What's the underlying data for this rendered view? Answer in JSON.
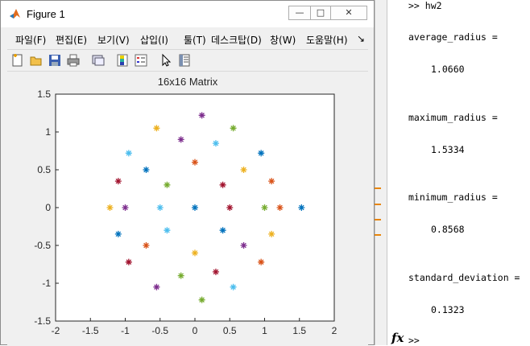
{
  "figure_window": {
    "title": "Figure 1",
    "buttons": {
      "minimize": "—",
      "maximize": "□",
      "close": "✕"
    },
    "menu": [
      "파일(F)",
      "편집(E)",
      "보기(V)",
      "삽입(I)",
      "툴(T)",
      "데스크탑(D)",
      "창(W)",
      "도움말(H)"
    ],
    "menu_more": "↘",
    "toolbar_icons": [
      "new-figure-icon",
      "open-file-icon",
      "save-icon",
      "print-icon",
      "link-plot-icon",
      "insert-colorbar-icon",
      "insert-legend-icon",
      "pointer-icon",
      "property-inspector-icon"
    ]
  },
  "chart_data": {
    "type": "scatter",
    "title": "16x16 Matrix",
    "xlabel": "",
    "ylabel": "",
    "xlim": [
      -2,
      2
    ],
    "ylim": [
      -1.5,
      1.5
    ],
    "xticks": [
      "-2",
      "-1.5",
      "-1",
      "-0.5",
      "0",
      "0.5",
      "1",
      "1.5",
      "2"
    ],
    "yticks": [
      "1.5",
      "1",
      "0.5",
      "0",
      "-0.5",
      "-1",
      "-1.5"
    ],
    "marker": "*",
    "grid": false,
    "colors": [
      "#0072bd",
      "#d95319",
      "#edb120",
      "#7e2f8e",
      "#77ac30",
      "#4dbeee",
      "#a2142f"
    ],
    "points": [
      [
        1.53,
        0.0
      ],
      [
        1.22,
        0.0
      ],
      [
        -1.22,
        0.0
      ],
      [
        0.1,
        1.22
      ],
      [
        0.1,
        -1.22
      ],
      [
        -0.95,
        0.72
      ],
      [
        -0.95,
        -0.72
      ],
      [
        0.95,
        0.72
      ],
      [
        0.95,
        -0.72
      ],
      [
        -0.55,
        1.05
      ],
      [
        -0.55,
        -1.05
      ],
      [
        0.55,
        1.05
      ],
      [
        0.55,
        -1.05
      ],
      [
        -1.1,
        0.35
      ],
      [
        -1.1,
        -0.35
      ],
      [
        1.1,
        0.35
      ],
      [
        1.1,
        -0.35
      ],
      [
        -0.2,
        0.9
      ],
      [
        -0.2,
        -0.9
      ],
      [
        0.3,
        0.85
      ],
      [
        0.3,
        -0.85
      ],
      [
        -0.7,
        0.5
      ],
      [
        -0.7,
        -0.5
      ],
      [
        0.7,
        0.5
      ],
      [
        0.7,
        -0.5
      ],
      [
        -0.4,
        0.3
      ],
      [
        -0.4,
        -0.3
      ],
      [
        0.4,
        0.3
      ],
      [
        0.4,
        -0.3
      ],
      [
        0.0,
        0.6
      ],
      [
        0.0,
        -0.6
      ],
      [
        -1.0,
        0.0
      ],
      [
        1.0,
        0.0
      ],
      [
        -0.5,
        0.0
      ],
      [
        0.5,
        0.0
      ],
      [
        0.0,
        0.0
      ]
    ]
  },
  "command_window": {
    "lines": [
      {
        "text": ">> hw2"
      },
      {
        "text": "average_radius ="
      },
      {
        "text": "1.0660"
      },
      {
        "text": "maximum_radius ="
      },
      {
        "text": "1.5334"
      },
      {
        "text": "minimum_radius ="
      },
      {
        "text": "0.8568"
      },
      {
        "text": "standard_deviation ="
      },
      {
        "text": "0.1323"
      }
    ],
    "fx_symbol": "fx",
    "prompt": ">>"
  }
}
